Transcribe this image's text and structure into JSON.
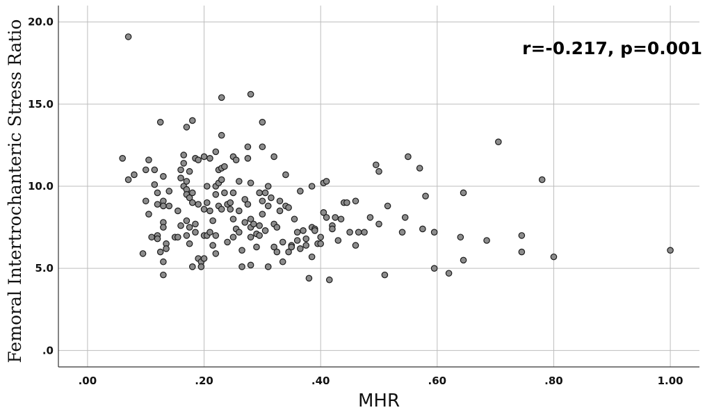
{
  "chart_data": {
    "type": "scatter",
    "title": "",
    "xlabel": "MHR",
    "ylabel": "Femoral Intertrochanteric Stress Ratio",
    "annotation": "r=-0.217, p=0.001",
    "xlim": [
      -0.05,
      1.05
    ],
    "ylim": [
      -1,
      21
    ],
    "x_ticks": [
      0.0,
      0.2,
      0.4,
      0.6,
      0.8,
      1.0
    ],
    "x_tick_labels": [
      ".00",
      ".20",
      ".40",
      ".60",
      ".80",
      "1.00"
    ],
    "y_ticks": [
      0,
      5,
      10,
      15,
      20
    ],
    "y_tick_labels": [
      ".0",
      "5.0",
      "10.0",
      "15.0",
      "20.0"
    ],
    "grid": true,
    "point_color": "#8c8c8c",
    "points": [
      [
        0.07,
        19.1
      ],
      [
        0.06,
        11.7
      ],
      [
        0.07,
        10.4
      ],
      [
        0.08,
        10.7
      ],
      [
        0.095,
        5.9
      ],
      [
        0.1,
        11.0
      ],
      [
        0.1,
        9.1
      ],
      [
        0.105,
        8.3
      ],
      [
        0.105,
        11.6
      ],
      [
        0.11,
        6.9
      ],
      [
        0.115,
        10.1
      ],
      [
        0.115,
        11.0
      ],
      [
        0.12,
        9.6
      ],
      [
        0.12,
        8.9
      ],
      [
        0.12,
        7.0
      ],
      [
        0.12,
        6.8
      ],
      [
        0.125,
        13.9
      ],
      [
        0.125,
        6.0
      ],
      [
        0.13,
        10.6
      ],
      [
        0.13,
        9.1
      ],
      [
        0.13,
        8.8
      ],
      [
        0.13,
        7.8
      ],
      [
        0.13,
        7.5
      ],
      [
        0.13,
        5.4
      ],
      [
        0.13,
        4.6
      ],
      [
        0.135,
        6.5
      ],
      [
        0.135,
        6.2
      ],
      [
        0.14,
        9.7
      ],
      [
        0.14,
        8.8
      ],
      [
        0.15,
        6.9
      ],
      [
        0.155,
        6.9
      ],
      [
        0.155,
        8.5
      ],
      [
        0.16,
        7.6
      ],
      [
        0.16,
        10.5
      ],
      [
        0.16,
        11.0
      ],
      [
        0.165,
        11.4
      ],
      [
        0.165,
        11.9
      ],
      [
        0.165,
        10.0
      ],
      [
        0.17,
        9.8
      ],
      [
        0.17,
        9.5
      ],
      [
        0.17,
        7.9
      ],
      [
        0.17,
        7.0
      ],
      [
        0.17,
        13.6
      ],
      [
        0.17,
        10.3
      ],
      [
        0.175,
        10.9
      ],
      [
        0.175,
        9.3
      ],
      [
        0.175,
        7.5
      ],
      [
        0.175,
        6.5
      ],
      [
        0.18,
        5.1
      ],
      [
        0.18,
        14.0
      ],
      [
        0.18,
        9.6
      ],
      [
        0.18,
        9.0
      ],
      [
        0.185,
        7.7
      ],
      [
        0.185,
        7.2
      ],
      [
        0.185,
        11.7
      ],
      [
        0.19,
        11.6
      ],
      [
        0.19,
        8.9
      ],
      [
        0.19,
        5.6
      ],
      [
        0.195,
        5.4
      ],
      [
        0.195,
        5.1
      ],
      [
        0.2,
        11.8
      ],
      [
        0.2,
        8.6
      ],
      [
        0.2,
        7.0
      ],
      [
        0.2,
        5.6
      ],
      [
        0.205,
        10.0
      ],
      [
        0.205,
        9.0
      ],
      [
        0.205,
        7.0
      ],
      [
        0.21,
        11.7
      ],
      [
        0.21,
        8.5
      ],
      [
        0.21,
        7.2
      ],
      [
        0.215,
        7.9
      ],
      [
        0.215,
        6.4
      ],
      [
        0.22,
        12.1
      ],
      [
        0.22,
        10.0
      ],
      [
        0.22,
        9.5
      ],
      [
        0.22,
        7.0
      ],
      [
        0.22,
        5.9
      ],
      [
        0.225,
        11.0
      ],
      [
        0.225,
        10.2
      ],
      [
        0.225,
        8.8
      ],
      [
        0.23,
        15.4
      ],
      [
        0.23,
        13.1
      ],
      [
        0.23,
        11.1
      ],
      [
        0.23,
        10.4
      ],
      [
        0.23,
        8.6
      ],
      [
        0.235,
        11.2
      ],
      [
        0.235,
        9.6
      ],
      [
        0.24,
        8.9
      ],
      [
        0.24,
        6.6
      ],
      [
        0.245,
        9.0
      ],
      [
        0.245,
        8.6
      ],
      [
        0.25,
        11.8
      ],
      [
        0.25,
        9.6
      ],
      [
        0.25,
        8.0
      ],
      [
        0.25,
        6.9
      ],
      [
        0.255,
        11.6
      ],
      [
        0.255,
        7.4
      ],
      [
        0.26,
        10.3
      ],
      [
        0.26,
        8.5
      ],
      [
        0.26,
        7.2
      ],
      [
        0.265,
        6.1
      ],
      [
        0.265,
        5.1
      ],
      [
        0.27,
        9.2
      ],
      [
        0.27,
        7.8
      ],
      [
        0.275,
        12.4
      ],
      [
        0.275,
        11.7
      ],
      [
        0.275,
        8.9
      ],
      [
        0.28,
        15.6
      ],
      [
        0.28,
        10.2
      ],
      [
        0.28,
        8.0
      ],
      [
        0.28,
        7.5
      ],
      [
        0.28,
        6.9
      ],
      [
        0.28,
        5.2
      ],
      [
        0.285,
        7.7
      ],
      [
        0.29,
        7.1
      ],
      [
        0.29,
        6.3
      ],
      [
        0.295,
        9.6
      ],
      [
        0.295,
        7.6
      ],
      [
        0.295,
        7.0
      ],
      [
        0.3,
        13.9
      ],
      [
        0.3,
        12.4
      ],
      [
        0.3,
        9.1
      ],
      [
        0.3,
        8.3
      ],
      [
        0.305,
        9.6
      ],
      [
        0.305,
        7.3
      ],
      [
        0.31,
        10.0
      ],
      [
        0.31,
        8.8
      ],
      [
        0.31,
        5.1
      ],
      [
        0.315,
        9.3
      ],
      [
        0.32,
        11.8
      ],
      [
        0.32,
        7.7
      ],
      [
        0.32,
        6.3
      ],
      [
        0.325,
        7.5
      ],
      [
        0.325,
        6.0
      ],
      [
        0.33,
        9.1
      ],
      [
        0.33,
        8.5
      ],
      [
        0.335,
        6.6
      ],
      [
        0.335,
        5.4
      ],
      [
        0.34,
        10.7
      ],
      [
        0.34,
        8.8
      ],
      [
        0.345,
        8.7
      ],
      [
        0.345,
        6.0
      ],
      [
        0.35,
        6.4
      ],
      [
        0.35,
        6.3
      ],
      [
        0.355,
        8.0
      ],
      [
        0.36,
        7.2
      ],
      [
        0.36,
        6.7
      ],
      [
        0.365,
        9.7
      ],
      [
        0.365,
        6.2
      ],
      [
        0.37,
        7.3
      ],
      [
        0.375,
        6.8
      ],
      [
        0.375,
        6.4
      ],
      [
        0.38,
        4.4
      ],
      [
        0.385,
        10.0
      ],
      [
        0.385,
        7.5
      ],
      [
        0.385,
        5.7
      ],
      [
        0.39,
        7.4
      ],
      [
        0.39,
        7.3
      ],
      [
        0.395,
        6.5
      ],
      [
        0.4,
        6.9
      ],
      [
        0.4,
        6.5
      ],
      [
        0.405,
        8.4
      ],
      [
        0.405,
        10.2
      ],
      [
        0.41,
        10.3
      ],
      [
        0.41,
        8.1
      ],
      [
        0.415,
        4.3
      ],
      [
        0.42,
        7.6
      ],
      [
        0.42,
        7.4
      ],
      [
        0.425,
        8.1
      ],
      [
        0.43,
        6.7
      ],
      [
        0.435,
        8.0
      ],
      [
        0.44,
        9.0
      ],
      [
        0.445,
        9.0
      ],
      [
        0.45,
        7.2
      ],
      [
        0.46,
        9.1
      ],
      [
        0.46,
        6.4
      ],
      [
        0.465,
        7.2
      ],
      [
        0.475,
        7.2
      ],
      [
        0.485,
        8.1
      ],
      [
        0.495,
        11.3
      ],
      [
        0.5,
        10.9
      ],
      [
        0.5,
        7.7
      ],
      [
        0.51,
        4.6
      ],
      [
        0.515,
        8.8
      ],
      [
        0.54,
        7.2
      ],
      [
        0.545,
        8.1
      ],
      [
        0.55,
        11.8
      ],
      [
        0.57,
        11.1
      ],
      [
        0.575,
        7.4
      ],
      [
        0.58,
        9.4
      ],
      [
        0.595,
        7.2
      ],
      [
        0.595,
        5.0
      ],
      [
        0.62,
        4.7
      ],
      [
        0.64,
        6.9
      ],
      [
        0.645,
        5.5
      ],
      [
        0.645,
        9.6
      ],
      [
        0.685,
        6.7
      ],
      [
        0.705,
        12.7
      ],
      [
        0.745,
        7.0
      ],
      [
        0.745,
        6.0
      ],
      [
        0.78,
        10.4
      ],
      [
        0.8,
        5.7
      ],
      [
        1.0,
        6.1
      ]
    ]
  }
}
